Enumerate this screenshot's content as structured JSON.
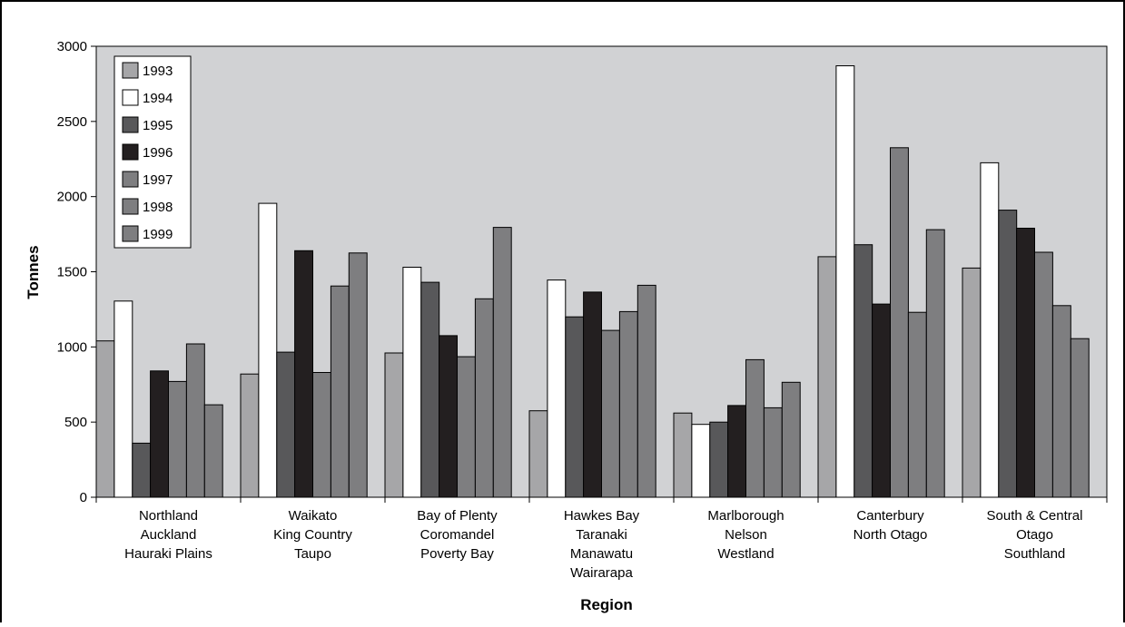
{
  "chart_data": {
    "type": "bar",
    "title": "",
    "xlabel": "Region",
    "ylabel": "Tonnes",
    "ylim": [
      0,
      3000
    ],
    "yticks": [
      0,
      500,
      1000,
      1500,
      2000,
      2500,
      3000
    ],
    "ytick_labels": [
      "0",
      "500",
      "1000",
      "1500",
      "2000",
      "2500",
      "3000"
    ],
    "grid": false,
    "legend_position": "top-left",
    "categories": [
      [
        "Northland",
        "Auckland",
        "Hauraki Plains"
      ],
      [
        "Waikato",
        "King Country",
        "Taupo"
      ],
      [
        "Bay of Plenty",
        "Coromandel",
        "Poverty Bay"
      ],
      [
        "Hawkes Bay",
        "Taranaki",
        "Manawatu",
        "Wairarapa"
      ],
      [
        "Marlborough",
        "Nelson",
        "Westland"
      ],
      [
        "Canterbury",
        "North Otago"
      ],
      [
        "South & Central",
        "Otago",
        "Southland"
      ]
    ],
    "series": [
      {
        "name": "1993",
        "color": "#a6a6a8",
        "values": [
          1040,
          820,
          960,
          575,
          560,
          1600,
          1525
        ]
      },
      {
        "name": "1994",
        "color": "#ffffff",
        "values": [
          1305,
          1955,
          1530,
          1445,
          485,
          2870,
          2225
        ]
      },
      {
        "name": "1995",
        "color": "#58585a",
        "values": [
          360,
          965,
          1430,
          1200,
          500,
          1680,
          1910
        ]
      },
      {
        "name": "1996",
        "color": "#231f20",
        "values": [
          840,
          1640,
          1075,
          1365,
          610,
          1285,
          1790
        ]
      },
      {
        "name": "1997",
        "color": "#7e7e80",
        "values": [
          770,
          830,
          935,
          1110,
          915,
          2325,
          1630
        ]
      },
      {
        "name": "1998",
        "color": "#7e7e80",
        "values": [
          1020,
          1405,
          1320,
          1235,
          595,
          1230,
          1275
        ]
      },
      {
        "name": "1999",
        "color": "#7e7e80",
        "values": [
          615,
          1625,
          1795,
          1410,
          765,
          1780,
          1055
        ]
      }
    ],
    "colors": {
      "plot_background": "#d1d2d4",
      "bar_stroke": "#000000"
    }
  }
}
